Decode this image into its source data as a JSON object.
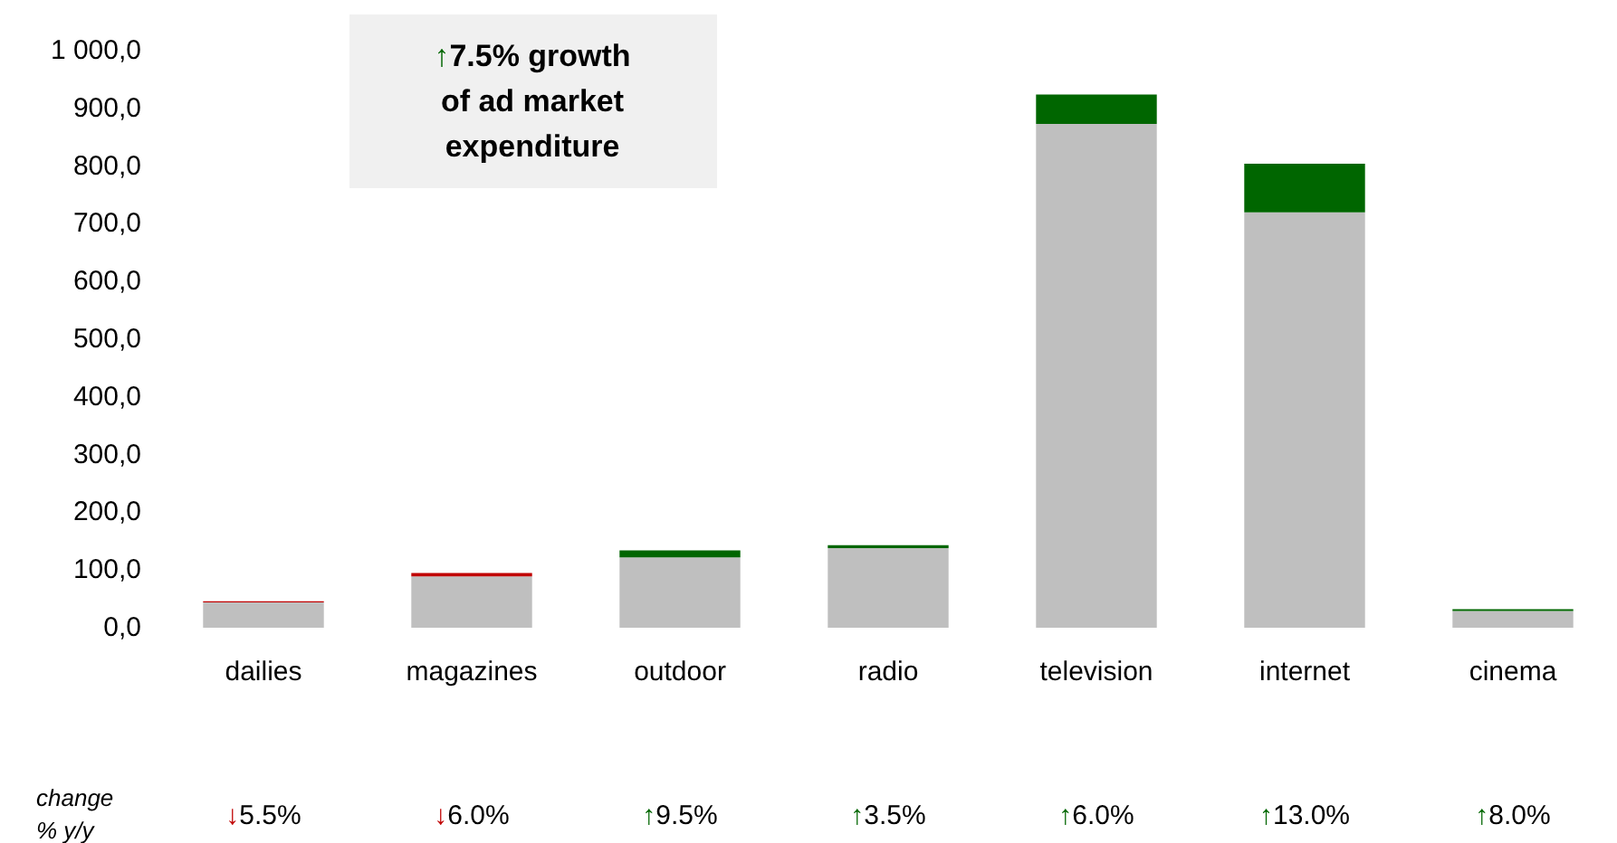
{
  "chart_data": {
    "type": "bar",
    "stacked": true,
    "categories": [
      "dailies",
      "magazines",
      "outdoor",
      "radio",
      "television",
      "internet",
      "cinema"
    ],
    "series": [
      {
        "color": "#bfbfbf",
        "values": [
          44,
          89,
          122,
          138,
          873,
          720,
          29
        ]
      },
      {
        "colors": [
          "#c00000",
          "#c00000",
          "#006600",
          "#006600",
          "#006600",
          "#006600",
          "#006600"
        ],
        "values": [
          2,
          6,
          12,
          5,
          51,
          84,
          3
        ]
      }
    ],
    "ylim": [
      0,
      1000
    ],
    "yticks": [
      {
        "value": 0,
        "label": "0,0"
      },
      {
        "value": 100,
        "label": "100,0"
      },
      {
        "value": 200,
        "label": "200,0"
      },
      {
        "value": 300,
        "label": "300,0"
      },
      {
        "value": 400,
        "label": "400,0"
      },
      {
        "value": 500,
        "label": "500,0"
      },
      {
        "value": 600,
        "label": "600,0"
      },
      {
        "value": 700,
        "label": "700,0"
      },
      {
        "value": 800,
        "label": "800,0"
      },
      {
        "value": 900,
        "label": "900,0"
      },
      {
        "value": 1000,
        "label": "1 000,0"
      }
    ],
    "grid": false,
    "annotations": [
      "↑7.5% growth of ad market expenditure",
      "change % y/y",
      "↓5.5%",
      "↓6.0%",
      "↑9.5%",
      "↑3.5%",
      "↑6.0%",
      "↑13.0%",
      "↑8.0%"
    ]
  }
}
